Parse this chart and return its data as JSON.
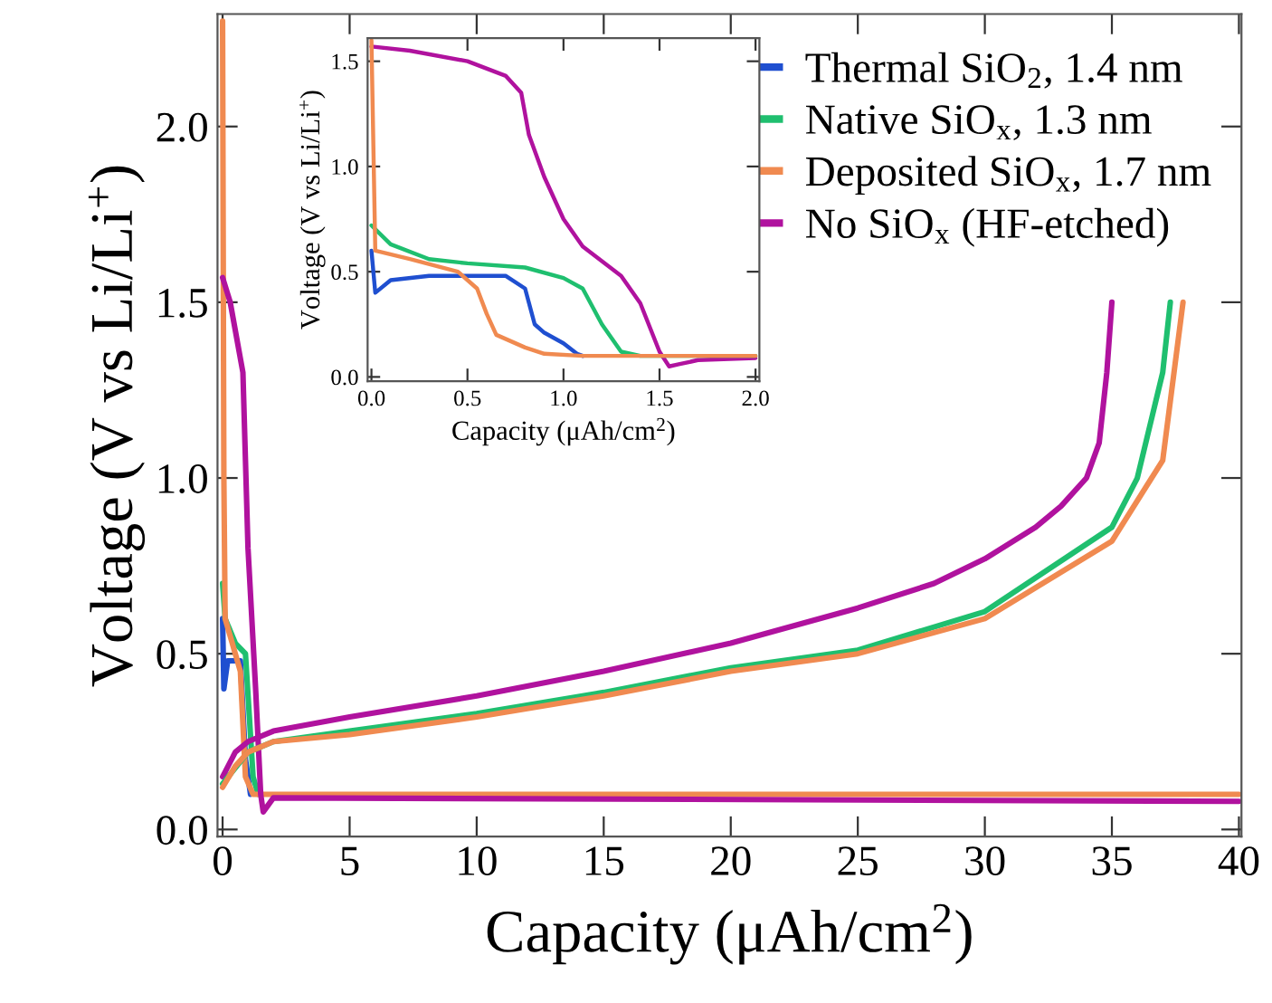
{
  "chart_data": [
    {
      "type": "line",
      "xlabel": "Capacity (μAh/cm$^{2}$)",
      "ylabel": "Voltage (V vs Li/Li$^{+}$)",
      "xlim": [
        -0.2,
        40.1
      ],
      "ylim": [
        -0.02,
        2.32
      ],
      "xticks": [
        0,
        5,
        10,
        15,
        20,
        25,
        30,
        35,
        40
      ],
      "yticks": [
        {
          "value": 0,
          "label": "0.0"
        },
        {
          "value": 0.5,
          "label": "0.5"
        },
        {
          "value": 1.0,
          "label": "1.0"
        },
        {
          "value": 1.5,
          "label": "1.5"
        },
        {
          "value": 2.0,
          "label": "2.0"
        }
      ],
      "legend": "top right",
      "grid": false,
      "marker": "none",
      "line_style": "solid",
      "series": [
        {
          "name": "Thermal SiO$_{2}$, 1.4 nm",
          "color": "#1f4fd0",
          "x": [
            0,
            0.05,
            0.2,
            0.7,
            0.9,
            1.1
          ],
          "values": [
            0.6,
            0.4,
            0.48,
            0.48,
            0.2,
            0.1
          ]
        },
        {
          "name": "Native SiO$_{x}$, 1.3 nm",
          "color": "#1fbf6f",
          "x": [
            0,
            0.1,
            0.5,
            0.9,
            1.2,
            1.4
          ],
          "values": [
            0.7,
            0.6,
            0.53,
            0.5,
            0.15,
            0.1
          ]
        },
        {
          "name": "Deposited SiO$_{x}$, 1.7 nm",
          "color": "#f08a50",
          "x": [
            0,
            0.05,
            0.1,
            0.5,
            0.7,
            0.9,
            1.2,
            40
          ],
          "values": [
            2.3,
            1.0,
            0.6,
            0.5,
            0.45,
            0.15,
            0.1,
            0.1
          ]
        },
        {
          "name": "No SiO$_{x}$ (HF-etched)",
          "color": "#b0129e",
          "x": [
            0,
            0.3,
            0.8,
            1.0,
            1.3,
            1.5,
            1.6,
            2,
            40
          ],
          "values": [
            1.57,
            1.5,
            1.3,
            0.8,
            0.4,
            0.1,
            0.05,
            0.09,
            0.08
          ]
        },
        {
          "color": "#b0129e",
          "x": [
            0,
            0.5,
            1,
            2,
            5,
            10,
            15,
            20,
            25,
            28,
            30,
            32,
            33,
            34,
            34.5,
            34.8,
            35
          ],
          "values": [
            0.15,
            0.22,
            0.25,
            0.28,
            0.32,
            0.38,
            0.45,
            0.53,
            0.63,
            0.7,
            0.77,
            0.86,
            0.92,
            1.0,
            1.1,
            1.3,
            1.5
          ]
        },
        {
          "color": "#1fbf6f",
          "x": [
            0,
            1,
            2,
            5,
            10,
            15,
            20,
            25,
            30,
            35,
            36,
            37,
            37.3
          ],
          "values": [
            0.13,
            0.22,
            0.25,
            0.28,
            0.33,
            0.39,
            0.46,
            0.51,
            0.62,
            0.86,
            1.0,
            1.3,
            1.5
          ]
        },
        {
          "color": "#f08a50",
          "x": [
            0,
            0.5,
            1,
            2,
            5,
            10,
            15,
            20,
            25,
            30,
            35,
            37,
            37.8
          ],
          "values": [
            0.12,
            0.18,
            0.22,
            0.25,
            0.27,
            0.32,
            0.38,
            0.45,
            0.5,
            0.6,
            0.82,
            1.05,
            1.5
          ]
        }
      ]
    },
    {
      "type": "line",
      "xlabel": "Capacity (μAh/cm$^{2}$)",
      "ylabel": "Voltage (V vs Li/Li$^{+}$)",
      "xlim": [
        -0.02,
        2.02
      ],
      "ylim": [
        -0.02,
        1.61
      ],
      "xticks": [
        {
          "value": 0,
          "label": "0.0"
        },
        {
          "value": 0.5,
          "label": "0.5"
        },
        {
          "value": 1.0,
          "label": "1.0"
        },
        {
          "value": 1.5,
          "label": "1.5"
        },
        {
          "value": 2.0,
          "label": "2.0"
        }
      ],
      "yticks": [
        {
          "value": 0,
          "label": "0.0"
        },
        {
          "value": 0.5,
          "label": "0.5"
        },
        {
          "value": 1.0,
          "label": "1.0"
        },
        {
          "value": 1.5,
          "label": "1.5"
        }
      ],
      "grid": false,
      "marker": "none",
      "line_style": "solid",
      "series": [
        {
          "color": "#b0129e",
          "x": [
            0,
            0.2,
            0.5,
            0.7,
            0.78,
            0.82,
            0.9,
            1.0,
            1.1,
            1.2,
            1.3,
            1.4,
            1.5,
            1.55,
            1.6,
            1.7,
            2.0
          ],
          "values": [
            1.57,
            1.55,
            1.5,
            1.43,
            1.35,
            1.15,
            0.95,
            0.75,
            0.62,
            0.55,
            0.48,
            0.35,
            0.12,
            0.05,
            0.06,
            0.08,
            0.09
          ]
        },
        {
          "color": "#1fbf6f",
          "x": [
            0,
            0.1,
            0.3,
            0.5,
            0.8,
            1.0,
            1.1,
            1.2,
            1.3,
            1.4,
            2.0
          ],
          "values": [
            0.72,
            0.63,
            0.56,
            0.54,
            0.52,
            0.47,
            0.42,
            0.25,
            0.12,
            0.1,
            0.1
          ]
        },
        {
          "color": "#1f4fd0",
          "x": [
            0,
            0.02,
            0.1,
            0.3,
            0.7,
            0.8,
            0.85,
            0.9,
            1.0,
            1.07,
            1.1
          ],
          "values": [
            0.6,
            0.4,
            0.46,
            0.48,
            0.48,
            0.42,
            0.25,
            0.21,
            0.16,
            0.11,
            0.1
          ]
        },
        {
          "color": "#f08a50",
          "x": [
            0,
            0.02,
            0.2,
            0.45,
            0.55,
            0.6,
            0.65,
            0.8,
            0.9,
            1.1,
            2.0
          ],
          "values": [
            1.6,
            0.6,
            0.56,
            0.5,
            0.42,
            0.3,
            0.2,
            0.14,
            0.11,
            0.1,
            0.1
          ]
        }
      ]
    }
  ]
}
